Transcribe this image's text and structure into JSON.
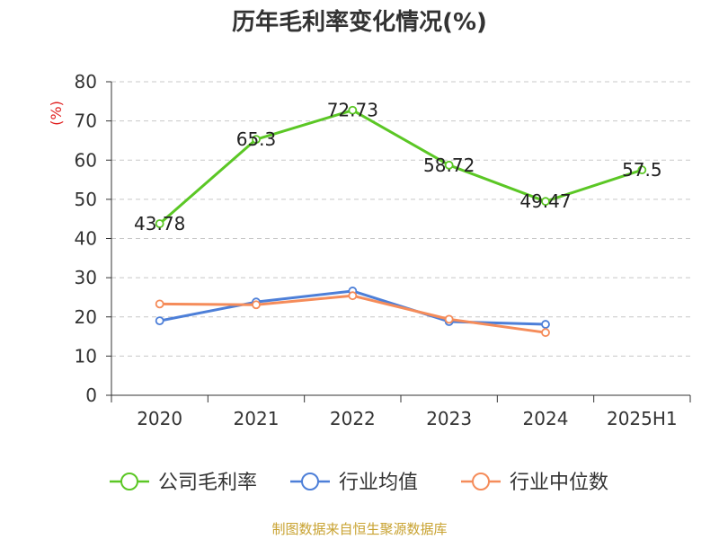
{
  "chart_data": {
    "type": "line",
    "title": "历年毛利率变化情况(%)",
    "ylabel": "(%)",
    "xlabel": "",
    "ylim": [
      0,
      80
    ],
    "yticks": [
      0,
      10,
      20,
      30,
      40,
      50,
      60,
      70,
      80
    ],
    "categories": [
      "2020",
      "2021",
      "2022",
      "2023",
      "2024",
      "2025H1"
    ],
    "grid": true,
    "legend_position": "bottom",
    "series": [
      {
        "name": "公司毛利率",
        "color": "#5bc725",
        "values": [
          43.78,
          65.3,
          72.73,
          58.72,
          49.47,
          57.5
        ],
        "labels": [
          "43.78",
          "65.3",
          "72.73",
          "58.72",
          "49.47",
          "57.5"
        ]
      },
      {
        "name": "行业均值",
        "color": "#4d7fd8",
        "values": [
          19.0,
          23.8,
          26.6,
          18.8,
          18.1,
          null
        ]
      },
      {
        "name": "行业中位数",
        "color": "#f58c5a",
        "values": [
          23.3,
          23.1,
          25.4,
          19.4,
          16.0,
          null
        ]
      }
    ]
  },
  "footer": {
    "source": "制图数据来自恒生聚源数据库"
  }
}
